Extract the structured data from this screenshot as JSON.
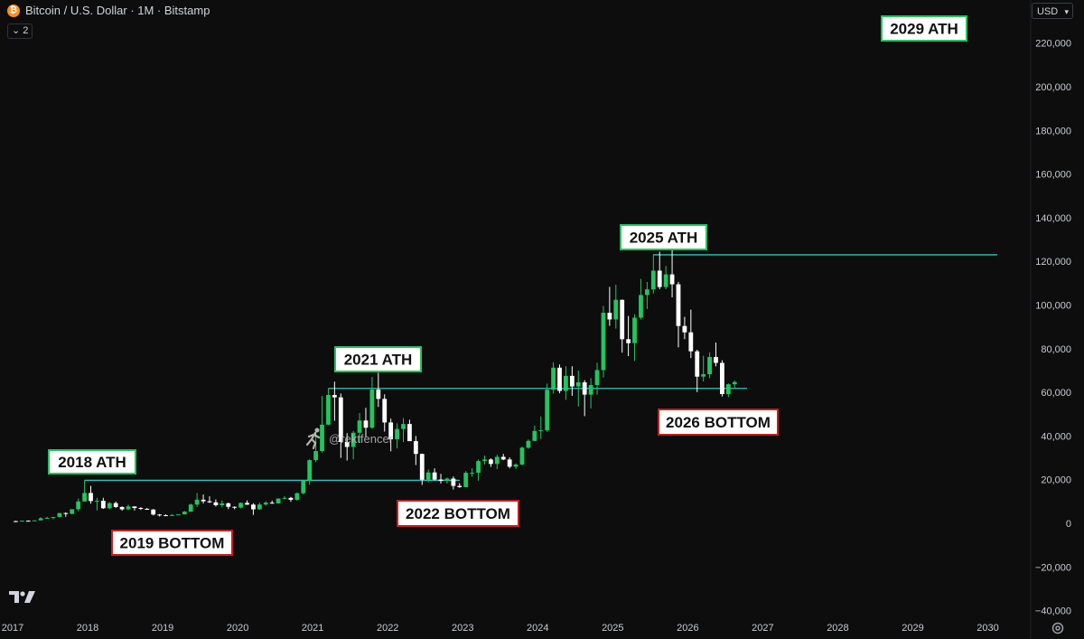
{
  "header": {
    "coin_symbol": "₿",
    "title": "Bitcoin / U.S. Dollar · 1M · Bitstamp",
    "indicator_count": "⌄ 2"
  },
  "currency": {
    "label": "USD",
    "chevron_icon": "chevron-down-icon"
  },
  "watermark": {
    "handle": "@rektfencer"
  },
  "colors": {
    "background": "#0d0d0d",
    "bull": "#22c55e",
    "bear": "#ffffff",
    "level_line": "#2ec4c4",
    "ath_box": "#22c55e",
    "bottom_box": "#c41e1e"
  },
  "chart_data": {
    "type": "candlestick",
    "title": "Bitcoin / U.S. Dollar · 1M · Bitstamp",
    "xlabel": "",
    "ylabel": "",
    "xlim": [
      "2017-01",
      "2030-05"
    ],
    "ylim": [
      -43000,
      230000
    ],
    "x_ticks": [
      "2017",
      "2018",
      "2019",
      "2020",
      "2021",
      "2022",
      "2023",
      "2024",
      "2025",
      "2026",
      "2027",
      "2028",
      "2029",
      "2030"
    ],
    "y_ticks": [
      -40000,
      -20000,
      0,
      20000,
      40000,
      60000,
      80000,
      100000,
      120000,
      140000,
      160000,
      180000,
      200000,
      220000
    ],
    "y_tick_labels": [
      "−40,000",
      "−20,000",
      "0",
      "20,000",
      "40,000",
      "60,000",
      "80,000",
      "100,000",
      "120,000",
      "140,000",
      "160,000",
      "180,000",
      "200,000",
      "220,000"
    ],
    "grid": false,
    "series": [
      {
        "columns": [
          "date",
          "open",
          "high",
          "low",
          "close"
        ],
        "values": [
          [
            "2017-01",
            1000,
            1200,
            750,
            970
          ],
          [
            "2017-02",
            970,
            1200,
            910,
            1190
          ],
          [
            "2017-03",
            1190,
            1350,
            890,
            1080
          ],
          [
            "2017-04",
            1080,
            1350,
            1070,
            1350
          ],
          [
            "2017-05",
            1350,
            2780,
            1350,
            2300
          ],
          [
            "2017-06",
            2300,
            3000,
            2200,
            2480
          ],
          [
            "2017-07",
            2480,
            2950,
            1830,
            2880
          ],
          [
            "2017-08",
            2880,
            4750,
            2700,
            4700
          ],
          [
            "2017-09",
            4700,
            5000,
            2970,
            4340
          ],
          [
            "2017-10",
            4340,
            6470,
            4110,
            6450
          ],
          [
            "2017-11",
            6450,
            11400,
            5520,
            10000
          ],
          [
            "2017-12",
            10000,
            19700,
            10000,
            13900
          ],
          [
            "2018-01",
            13900,
            17200,
            9000,
            10200
          ],
          [
            "2018-02",
            10200,
            11700,
            5900,
            10300
          ],
          [
            "2018-03",
            10300,
            11700,
            6600,
            6900
          ],
          [
            "2018-04",
            6900,
            9760,
            6400,
            9240
          ],
          [
            "2018-05",
            9240,
            9990,
            7050,
            7490
          ],
          [
            "2018-06",
            7490,
            7760,
            5780,
            6400
          ],
          [
            "2018-07",
            6400,
            8500,
            6070,
            7730
          ],
          [
            "2018-08",
            7730,
            7760,
            5880,
            7020
          ],
          [
            "2018-09",
            7020,
            7400,
            6140,
            6630
          ],
          [
            "2018-10",
            6630,
            7000,
            6200,
            6300
          ],
          [
            "2018-11",
            6300,
            6550,
            3600,
            4020
          ],
          [
            "2018-12",
            4020,
            4240,
            3150,
            3700
          ],
          [
            "2019-01",
            3700,
            4100,
            3350,
            3440
          ],
          [
            "2019-02",
            3440,
            4200,
            3380,
            3810
          ],
          [
            "2019-03",
            3810,
            4130,
            3680,
            4100
          ],
          [
            "2019-04",
            4100,
            5640,
            4050,
            5330
          ],
          [
            "2019-05",
            5330,
            9000,
            5330,
            8580
          ],
          [
            "2019-06",
            8580,
            13880,
            7500,
            10820
          ],
          [
            "2019-07",
            10820,
            13200,
            9060,
            10080
          ],
          [
            "2019-08",
            10080,
            12350,
            9350,
            9600
          ],
          [
            "2019-09",
            9600,
            10950,
            7700,
            8290
          ],
          [
            "2019-10",
            8290,
            10500,
            7300,
            9150
          ],
          [
            "2019-11",
            9150,
            9520,
            6500,
            7550
          ],
          [
            "2019-12",
            7550,
            7760,
            6430,
            7190
          ],
          [
            "2020-01",
            7190,
            9560,
            6850,
            9350
          ],
          [
            "2020-02",
            9350,
            10500,
            8450,
            8550
          ],
          [
            "2020-03",
            8550,
            9190,
            3850,
            6410
          ],
          [
            "2020-04",
            6410,
            9470,
            6150,
            8620
          ],
          [
            "2020-05",
            8620,
            10080,
            8100,
            9450
          ],
          [
            "2020-06",
            9450,
            10400,
            8900,
            9140
          ],
          [
            "2020-07",
            9140,
            11450,
            8960,
            11350
          ],
          [
            "2020-08",
            11350,
            12480,
            10950,
            11650
          ],
          [
            "2020-09",
            11650,
            12090,
            9850,
            10780
          ],
          [
            "2020-10",
            10780,
            14100,
            10370,
            13800
          ],
          [
            "2020-11",
            13800,
            19800,
            13200,
            19700
          ],
          [
            "2020-12",
            19700,
            29300,
            17600,
            28950
          ],
          [
            "2021-01",
            28950,
            41950,
            28100,
            33100
          ],
          [
            "2021-02",
            33100,
            58350,
            32350,
            45200
          ],
          [
            "2021-03",
            45200,
            61800,
            44950,
            58800
          ],
          [
            "2021-04",
            58800,
            64900,
            47000,
            57700
          ],
          [
            "2021-05",
            57700,
            59500,
            30000,
            37300
          ],
          [
            "2021-06",
            37300,
            41300,
            28800,
            35000
          ],
          [
            "2021-07",
            35000,
            42300,
            29300,
            41500
          ],
          [
            "2021-08",
            41500,
            50500,
            37300,
            47100
          ],
          [
            "2021-09",
            47100,
            52900,
            39600,
            43800
          ],
          [
            "2021-10",
            43800,
            67000,
            43300,
            61300
          ],
          [
            "2021-11",
            61300,
            69000,
            53300,
            57000
          ],
          [
            "2021-12",
            57000,
            59100,
            42000,
            46200
          ],
          [
            "2022-01",
            46200,
            47990,
            33000,
            38500
          ],
          [
            "2022-02",
            38500,
            45800,
            34300,
            43200
          ],
          [
            "2022-03",
            43200,
            48200,
            37200,
            45500
          ],
          [
            "2022-04",
            45500,
            47450,
            37700,
            37650
          ],
          [
            "2022-05",
            37650,
            40000,
            26700,
            31800
          ],
          [
            "2022-06",
            31800,
            31950,
            17600,
            19950
          ],
          [
            "2022-07",
            19950,
            24650,
            18800,
            23300
          ],
          [
            "2022-08",
            23300,
            25200,
            19600,
            20050
          ],
          [
            "2022-09",
            20050,
            22700,
            18200,
            19420
          ],
          [
            "2022-10",
            19420,
            20950,
            18200,
            20500
          ],
          [
            "2022-11",
            20500,
            21500,
            15500,
            17150
          ],
          [
            "2022-12",
            17150,
            18400,
            16300,
            16550
          ],
          [
            "2023-01",
            16550,
            23950,
            16500,
            23150
          ],
          [
            "2023-02",
            23150,
            25250,
            21350,
            23150
          ],
          [
            "2023-03",
            23150,
            29200,
            19550,
            28500
          ],
          [
            "2023-04",
            28500,
            31050,
            26950,
            29250
          ],
          [
            "2023-05",
            29250,
            29800,
            25850,
            27200
          ],
          [
            "2023-06",
            27200,
            31400,
            24800,
            30450
          ],
          [
            "2023-07",
            30450,
            31800,
            28900,
            29250
          ],
          [
            "2023-08",
            29250,
            30200,
            25200,
            25950
          ],
          [
            "2023-09",
            25950,
            27450,
            24950,
            26950
          ],
          [
            "2023-10",
            26950,
            35200,
            26550,
            34650
          ],
          [
            "2023-11",
            34650,
            38450,
            34100,
            37750
          ],
          [
            "2023-12",
            37750,
            44750,
            37650,
            42300
          ],
          [
            "2024-01",
            42300,
            48950,
            38550,
            42600
          ],
          [
            "2024-02",
            42600,
            64000,
            41900,
            61200
          ],
          [
            "2024-03",
            61200,
            73800,
            59400,
            71300
          ],
          [
            "2024-04",
            71300,
            72800,
            59600,
            60650
          ],
          [
            "2024-05",
            60650,
            71950,
            56550,
            67550
          ],
          [
            "2024-06",
            67550,
            71950,
            58400,
            62700
          ],
          [
            "2024-07",
            62700,
            70000,
            53500,
            64600
          ],
          [
            "2024-08",
            64600,
            65600,
            49100,
            58950
          ],
          [
            "2024-09",
            58950,
            66500,
            52600,
            63350
          ],
          [
            "2024-10",
            63350,
            73600,
            58900,
            70200
          ],
          [
            "2024-11",
            70200,
            99600,
            66800,
            96450
          ],
          [
            "2024-12",
            96450,
            108300,
            90500,
            93400
          ],
          [
            "2025-01",
            93400,
            109300,
            89200,
            102400
          ],
          [
            "2025-02",
            102400,
            102500,
            78200,
            84350
          ],
          [
            "2025-03",
            84350,
            95000,
            76600,
            82550
          ],
          [
            "2025-04",
            82550,
            95800,
            74400,
            94200
          ],
          [
            "2025-05",
            94200,
            112000,
            93350,
            104600
          ],
          [
            "2025-06",
            104600,
            110600,
            98200,
            107150
          ],
          [
            "2025-07",
            107150,
            123200,
            105250,
            115750
          ],
          [
            "2025-08",
            115750,
            124450,
            107250,
            108250
          ],
          [
            "2025-09",
            108250,
            117900,
            107250,
            114050
          ],
          [
            "2025-10",
            114050,
            126200,
            103500,
            109500
          ],
          [
            "2025-11",
            109500,
            110600,
            80600,
            90400
          ],
          [
            "2025-12",
            90400,
            94600,
            84400,
            87500
          ],
          [
            "2026-01",
            87500,
            97900,
            75700,
            78800
          ],
          [
            "2026-02",
            78800,
            79500,
            60100,
            67200
          ],
          [
            "2026-03",
            67200,
            76800,
            65000,
            68300
          ],
          [
            "2026-04",
            68300,
            78300,
            66500,
            76200
          ],
          [
            "2026-05",
            76200,
            82800,
            71900,
            73500
          ],
          [
            "2026-06",
            73500,
            74700,
            58100,
            59200
          ],
          [
            "2026-07",
            59200,
            64100,
            57800,
            63700
          ],
          [
            "2026-08",
            63700,
            65400,
            62000,
            64700
          ]
        ]
      }
    ],
    "levels": [
      {
        "value": 19700,
        "from": "2017-12",
        "to": "2022-12"
      },
      {
        "value": 61800,
        "from": "2021-03",
        "to": "2026-10"
      },
      {
        "value": 123000,
        "from": "2025-07",
        "to": "2030-02"
      }
    ],
    "annotations": [
      {
        "text": "2018 ATH",
        "kind": "ath",
        "x": "2017-12",
        "y": 19700
      },
      {
        "text": "2019 BOTTOM",
        "kind": "bottom",
        "x": "2019-02",
        "y": 3150
      },
      {
        "text": "2021 ATH",
        "kind": "ath",
        "x": "2021-11",
        "y": 69000
      },
      {
        "text": "2022 BOTTOM",
        "kind": "bottom",
        "x": "2022-12",
        "y": 15500
      },
      {
        "text": "2025 ATH",
        "kind": "ath",
        "x": "2025-08",
        "y": 126200
      },
      {
        "text": "2026 BOTTOM",
        "kind": "bottom",
        "x": "2026-06",
        "y": 58100
      },
      {
        "text": "2029 ATH",
        "kind": "ath",
        "x": "2029-06",
        "y": 220000
      }
    ]
  }
}
